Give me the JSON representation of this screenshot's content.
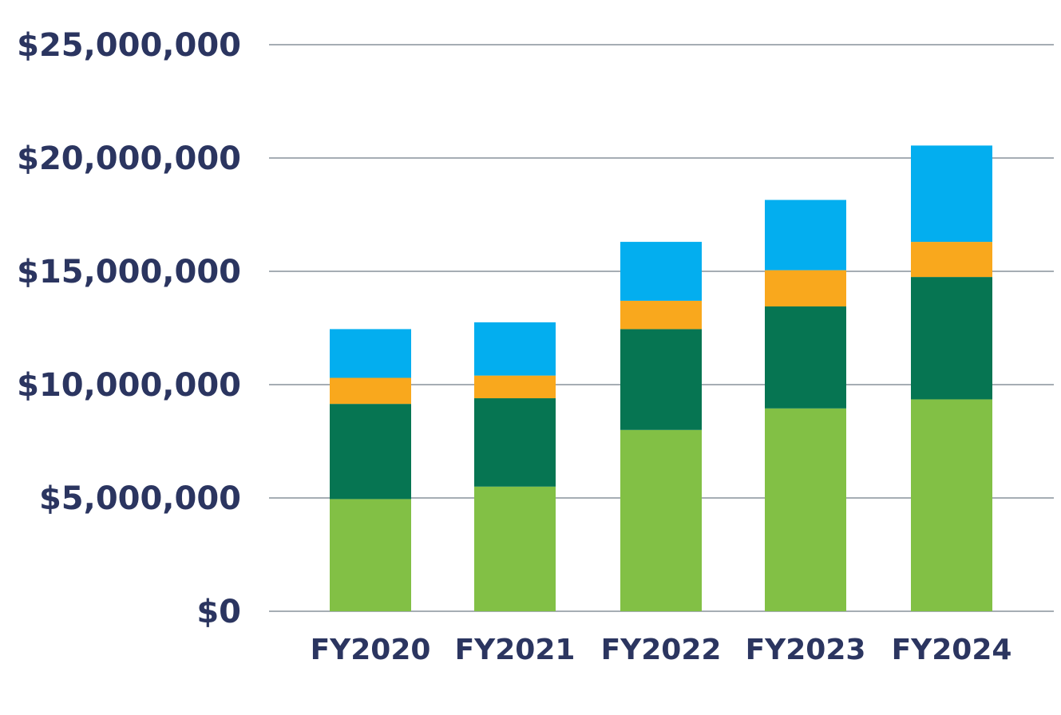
{
  "chart_data": {
    "type": "bar",
    "stacked": true,
    "categories": [
      "FY2020",
      "FY2021",
      "FY2022",
      "FY2023",
      "FY2024"
    ],
    "series": [
      {
        "color": "#82c045",
        "values": [
          4950000,
          5500000,
          8000000,
          8950000,
          9350000
        ]
      },
      {
        "color": "#067552",
        "values": [
          4200000,
          3900000,
          4450000,
          4500000,
          5400000
        ]
      },
      {
        "color": "#f9a81d",
        "values": [
          1150000,
          1000000,
          1250000,
          1600000,
          1550000
        ]
      },
      {
        "color": "#03aeef",
        "values": [
          2150000,
          2350000,
          2600000,
          3100000,
          4250000
        ]
      }
    ],
    "ylim": [
      0,
      25000000
    ],
    "yticks": [
      0,
      5000000,
      10000000,
      15000000,
      20000000,
      25000000
    ],
    "ytick_labels": [
      "$0",
      "$5,000,000",
      "$10,000,000",
      "$15,000,000",
      "$20,000,000",
      "$25,000,000"
    ],
    "grid": true,
    "grid_color": "#a6adb4",
    "text_color": "#2b3560",
    "title": "",
    "xlabel": "",
    "ylabel": ""
  }
}
